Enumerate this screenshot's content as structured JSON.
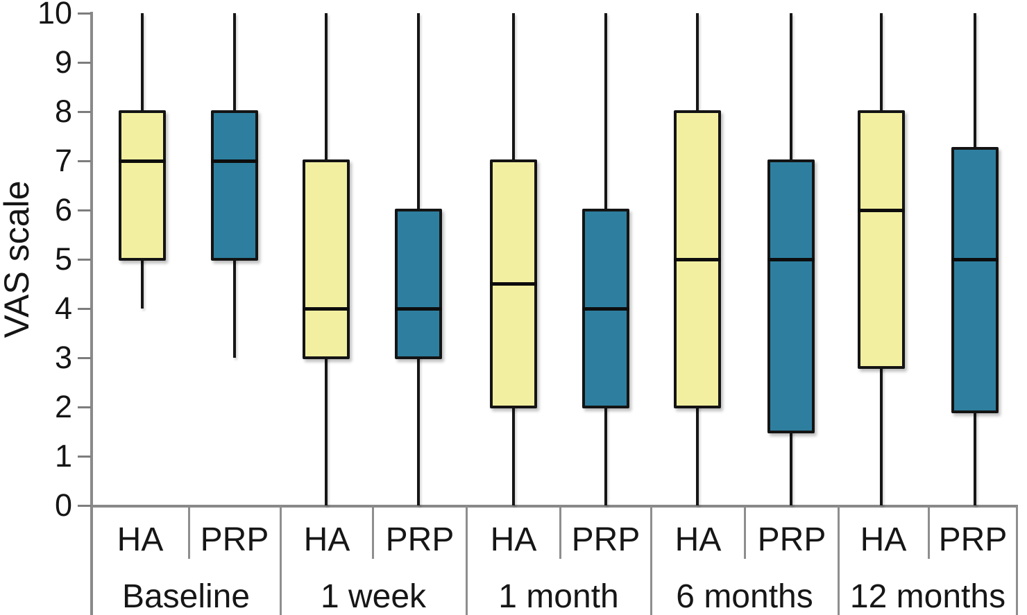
{
  "chart_data": {
    "type": "box",
    "title": "",
    "ylabel": "VAS scale",
    "xlabel": "",
    "ylim": [
      0,
      10
    ],
    "yticks": [
      "0",
      "1",
      "2",
      "3",
      "4",
      "5",
      "6",
      "7",
      "8",
      "9",
      "10"
    ],
    "grid": false,
    "legend_position": "none",
    "categories": [
      "Baseline",
      "1 week",
      "1 month",
      "6 months",
      "12 months"
    ],
    "series": [
      {
        "name": "HA",
        "color": "#F2EFA0",
        "boxes": [
          {
            "min": 4,
            "q1": 5,
            "median": 7,
            "q3": 8,
            "max": 10
          },
          {
            "min": 0,
            "q1": 3,
            "median": 4,
            "q3": 7,
            "max": 10
          },
          {
            "min": 0,
            "q1": 2,
            "median": 4.5,
            "q3": 7,
            "max": 10
          },
          {
            "min": 0,
            "q1": 2,
            "median": 5,
            "q3": 8,
            "max": 10
          },
          {
            "min": 0,
            "q1": 2.8,
            "median": 6,
            "q3": 8,
            "max": 10
          }
        ]
      },
      {
        "name": "PRP",
        "color": "#2E7F9F",
        "boxes": [
          {
            "min": 3,
            "q1": 5,
            "median": 7,
            "q3": 8,
            "max": 10
          },
          {
            "min": 0,
            "q1": 3,
            "median": 4,
            "q3": 6,
            "max": 10
          },
          {
            "min": 0,
            "q1": 2,
            "median": 4,
            "q3": 6,
            "max": 10
          },
          {
            "min": 0,
            "q1": 1.5,
            "median": 5,
            "q3": 7,
            "max": 10
          },
          {
            "min": 0,
            "q1": 1.9,
            "median": 5,
            "q3": 7.25,
            "max": 10
          }
        ]
      }
    ],
    "colors": {
      "ha_fill": "#F2EFA0",
      "prp_fill": "#2E7F9F",
      "box_border": "#141414",
      "axis_gray": "#898989",
      "text": "#151515",
      "background": "#ffffff"
    }
  }
}
